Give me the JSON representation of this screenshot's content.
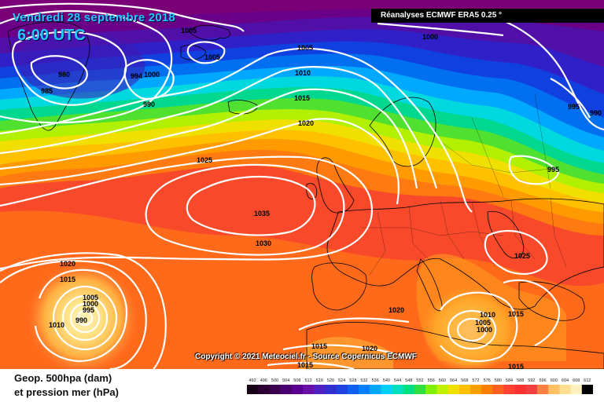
{
  "title": {
    "date_line": "Vendredi 28 septembre 2018",
    "time_line": "6:00 UTC"
  },
  "source_badge": "Réanalyses ECMWF ERA5 0.25 °",
  "copyright": "Copyright © 2021 Meteociel.fr - Source Copernicus ECMWF",
  "footer": {
    "line1": "Geop. 500hpa (dam)",
    "line2": "et pression mer (hPa)"
  },
  "legend": {
    "ticks": [
      "492",
      "496",
      "500",
      "504",
      "508",
      "512",
      "516",
      "520",
      "524",
      "528",
      "532",
      "536",
      "540",
      "544",
      "548",
      "552",
      "556",
      "560",
      "564",
      "568",
      "572",
      "576",
      "580",
      "584",
      "588",
      "592",
      "596",
      "600",
      "604",
      "608",
      "612"
    ],
    "colors": [
      "#160016",
      "#2a0030",
      "#3a0050",
      "#4a0070",
      "#5a0090",
      "#6a10a8",
      "#5020c0",
      "#3030d0",
      "#2040e0",
      "#1060f0",
      "#0080ff",
      "#00a8ff",
      "#00d0ff",
      "#00e0c0",
      "#00e080",
      "#30e040",
      "#80f000",
      "#c0f000",
      "#f0e000",
      "#ffc000",
      "#ffa000",
      "#ff8000",
      "#ff6020",
      "#ff4030",
      "#f83030",
      "#f04040",
      "#ff8040",
      "#ffc060",
      "#ffe090",
      "#fff0c0",
      "#000000"
    ]
  },
  "isobar_labels": [
    {
      "text": "1005",
      "name": "isobar-label-1005-north-atlantic"
    },
    {
      "text": "1005",
      "name": "isobar-label-1005-greenland-east"
    },
    {
      "text": "980",
      "name": "isobar-label-980"
    },
    {
      "text": "985",
      "name": "isobar-label-985"
    },
    {
      "text": "994",
      "name": "isobar-label-994"
    },
    {
      "text": "1000",
      "name": "isobar-label-1000-iceland"
    },
    {
      "text": "990",
      "name": "isobar-label-990-iceland"
    },
    {
      "text": "1005",
      "name": "isobar-label-1005-norway-sea"
    },
    {
      "text": "1000",
      "name": "isobar-label-1000-scandinavia"
    },
    {
      "text": "1010",
      "name": "isobar-label-1010-north"
    },
    {
      "text": "1015",
      "name": "isobar-label-1015-north"
    },
    {
      "text": "1020",
      "name": "isobar-label-1020-north-sea"
    },
    {
      "text": "1025",
      "name": "isobar-label-1025-atlantic"
    },
    {
      "text": "1035",
      "name": "isobar-label-1035"
    },
    {
      "text": "1030",
      "name": "isobar-label-1030"
    },
    {
      "text": "995",
      "name": "isobar-label-995-russia"
    },
    {
      "text": "990",
      "name": "isobar-label-990-russia"
    },
    {
      "text": "995",
      "name": "isobar-label-995-baltic"
    },
    {
      "text": "1025",
      "name": "isobar-label-1025-balkans"
    },
    {
      "text": "1020",
      "name": "isobar-label-1020-south-atlantic"
    },
    {
      "text": "1015",
      "name": "isobar-label-1015-south-atlantic"
    },
    {
      "text": "1005",
      "name": "isobar-label-1005-hurricane"
    },
    {
      "text": "1000",
      "name": "isobar-label-1000-hurricane"
    },
    {
      "text": "995",
      "name": "isobar-label-995-hurricane"
    },
    {
      "text": "990",
      "name": "isobar-label-990-hurricane"
    },
    {
      "text": "1010",
      "name": "isobar-label-1010-hurricane"
    },
    {
      "text": "1020",
      "name": "isobar-label-1020-mediterranean"
    },
    {
      "text": "1010",
      "name": "isobar-label-1010-medicane"
    },
    {
      "text": "1005",
      "name": "isobar-label-1005-medicane"
    },
    {
      "text": "1000",
      "name": "isobar-label-1000-medicane"
    },
    {
      "text": "1015",
      "name": "isobar-label-1015-greece"
    },
    {
      "text": "1015",
      "name": "isobar-label-1015-morocco"
    },
    {
      "text": "1020",
      "name": "isobar-label-1020-africa"
    },
    {
      "text": "1015",
      "name": "isobar-label-1015-sahara"
    },
    {
      "text": "1015",
      "name": "isobar-label-1015-libya"
    }
  ]
}
